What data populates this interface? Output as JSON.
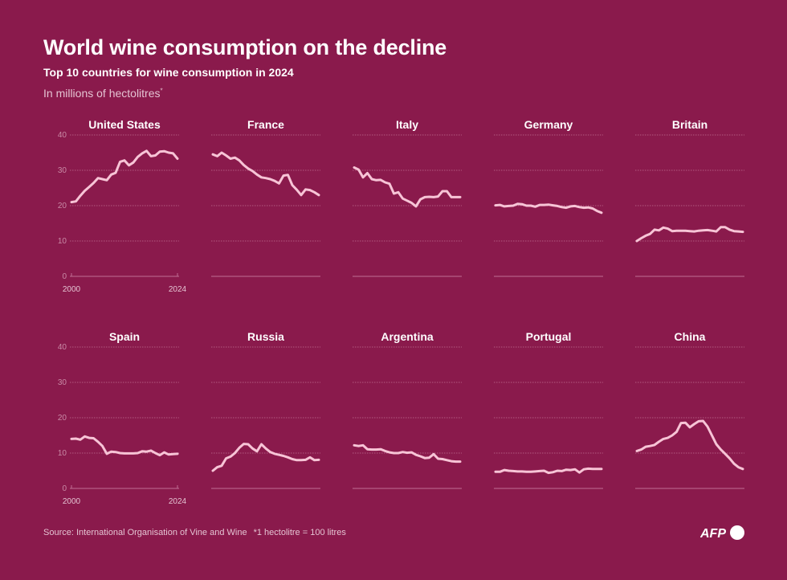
{
  "header": {
    "title": "World wine consumption on the decline",
    "subtitle": "Top 10 countries for wine consumption in 2024",
    "unit": "In millions of hectolitres",
    "unit_marker": "*"
  },
  "footer": {
    "source": "Source: International Organisation of Vine and Wine",
    "note": "*1 hectolitre = 100 litres",
    "logo": "AFP"
  },
  "colors": {
    "background": "#8a1a4c",
    "line": "#f7c4d6",
    "grid": "#c06f93"
  },
  "chart_data": {
    "type": "line",
    "layout": "small-multiples",
    "x": [
      2000,
      2001,
      2002,
      2003,
      2004,
      2005,
      2006,
      2007,
      2008,
      2009,
      2010,
      2011,
      2012,
      2013,
      2014,
      2015,
      2016,
      2017,
      2018,
      2019,
      2020,
      2021,
      2022,
      2023,
      2024
    ],
    "xticks": [
      "2000",
      "2024"
    ],
    "yticks": [
      "0",
      "10",
      "20",
      "30",
      "40"
    ],
    "ylim": [
      0,
      40
    ],
    "grid": true,
    "series": [
      {
        "name": "United States",
        "values": [
          21.0,
          21.2,
          22.8,
          24.2,
          25.3,
          26.4,
          27.8,
          27.5,
          27.2,
          28.8,
          29.3,
          32.4,
          32.8,
          31.4,
          32.2,
          33.8,
          34.8,
          35.5,
          34.0,
          34.2,
          35.3,
          35.4,
          35.0,
          34.8,
          33.3
        ]
      },
      {
        "name": "France",
        "values": [
          34.5,
          34.0,
          35.0,
          34.2,
          33.3,
          33.6,
          32.8,
          31.5,
          30.5,
          29.8,
          28.8,
          28.0,
          27.8,
          27.5,
          27.0,
          26.3,
          28.5,
          28.7,
          25.8,
          24.5,
          23.0,
          24.6,
          24.4,
          23.8,
          23.0
        ]
      },
      {
        "name": "Italy",
        "values": [
          30.8,
          30.2,
          28.0,
          29.2,
          27.5,
          27.2,
          27.3,
          26.6,
          26.2,
          23.4,
          23.8,
          22.0,
          21.4,
          20.8,
          19.8,
          21.8,
          22.4,
          22.5,
          22.4,
          22.6,
          24.1,
          24.1,
          22.4,
          22.4,
          22.4
        ]
      },
      {
        "name": "Germany",
        "values": [
          20.1,
          20.2,
          19.8,
          19.9,
          20.0,
          20.5,
          20.4,
          20.0,
          20.0,
          19.7,
          20.2,
          20.2,
          20.3,
          20.1,
          19.9,
          19.6,
          19.4,
          19.8,
          19.9,
          19.6,
          19.4,
          19.5,
          19.2,
          18.5,
          18.0
        ]
      },
      {
        "name": "Britain",
        "values": [
          10.0,
          10.8,
          11.5,
          12.0,
          13.2,
          13.0,
          13.8,
          13.5,
          12.8,
          12.9,
          12.9,
          12.9,
          12.8,
          12.7,
          12.9,
          13.0,
          13.1,
          12.9,
          12.7,
          13.9,
          13.9,
          13.2,
          12.8,
          12.7,
          12.6
        ]
      },
      {
        "name": "Spain",
        "values": [
          14.0,
          14.1,
          13.8,
          14.7,
          14.3,
          14.2,
          13.2,
          12.0,
          9.8,
          10.4,
          10.3,
          10.0,
          9.9,
          9.9,
          9.9,
          10.0,
          10.5,
          10.4,
          10.7,
          10.0,
          9.4,
          10.2,
          9.6,
          9.7,
          9.8
        ]
      },
      {
        "name": "Russia",
        "values": [
          5.0,
          6.0,
          6.4,
          8.5,
          9.0,
          10.0,
          11.5,
          12.6,
          12.5,
          11.3,
          10.5,
          12.5,
          11.3,
          10.3,
          9.8,
          9.5,
          9.2,
          8.8,
          8.3,
          8.0,
          8.0,
          8.1,
          8.8,
          8.0,
          8.1
        ]
      },
      {
        "name": "Argentina",
        "values": [
          12.2,
          12.0,
          12.2,
          11.1,
          11.0,
          11.0,
          11.1,
          10.6,
          10.2,
          10.0,
          10.0,
          10.3,
          10.1,
          10.2,
          9.5,
          9.1,
          8.6,
          8.7,
          9.7,
          8.4,
          8.3,
          8.0,
          7.7,
          7.6,
          7.6
        ]
      },
      {
        "name": "Portugal",
        "values": [
          4.7,
          4.7,
          5.2,
          5.0,
          4.9,
          4.8,
          4.8,
          4.7,
          4.7,
          4.8,
          4.9,
          5.0,
          4.4,
          4.6,
          5.0,
          4.9,
          5.3,
          5.2,
          5.4,
          4.5,
          5.4,
          5.6,
          5.5,
          5.5,
          5.5
        ]
      },
      {
        "name": "China",
        "values": [
          10.6,
          11.0,
          11.8,
          12.0,
          12.3,
          13.2,
          14.0,
          14.3,
          15.0,
          16.0,
          18.5,
          18.6,
          17.3,
          18.2,
          19.0,
          19.1,
          17.5,
          15.0,
          12.5,
          11.0,
          9.8,
          8.5,
          7.0,
          6.0,
          5.5
        ]
      }
    ]
  }
}
